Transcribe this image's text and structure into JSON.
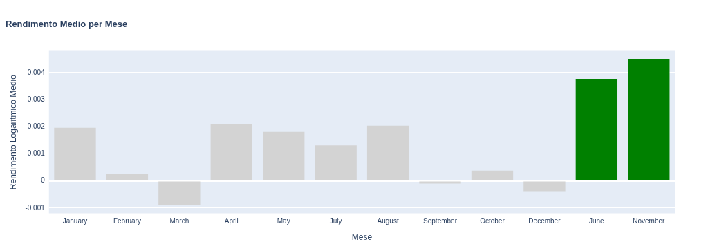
{
  "chart_data": {
    "type": "bar",
    "title": "Rendimento Medio per Mese",
    "xlabel": "Mese",
    "ylabel": "Rendimento Logaritmico Medio",
    "categories": [
      "January",
      "February",
      "March",
      "April",
      "May",
      "July",
      "August",
      "September",
      "October",
      "December",
      "June",
      "November"
    ],
    "values": [
      0.00196,
      0.00025,
      -0.00088,
      0.00211,
      0.00181,
      0.00131,
      0.00204,
      -0.0001,
      0.00038,
      -0.00038,
      0.00377,
      0.0045
    ],
    "colors": [
      "#d3d3d3",
      "#d3d3d3",
      "#d3d3d3",
      "#d3d3d3",
      "#d3d3d3",
      "#d3d3d3",
      "#d3d3d3",
      "#d3d3d3",
      "#d3d3d3",
      "#d3d3d3",
      "#008000",
      "#008000"
    ],
    "ylim": [
      -0.0012,
      0.0048
    ],
    "yticks": [
      -0.001,
      0,
      0.001,
      0.002,
      0.003,
      0.004
    ],
    "grid": "y",
    "legend": false
  }
}
